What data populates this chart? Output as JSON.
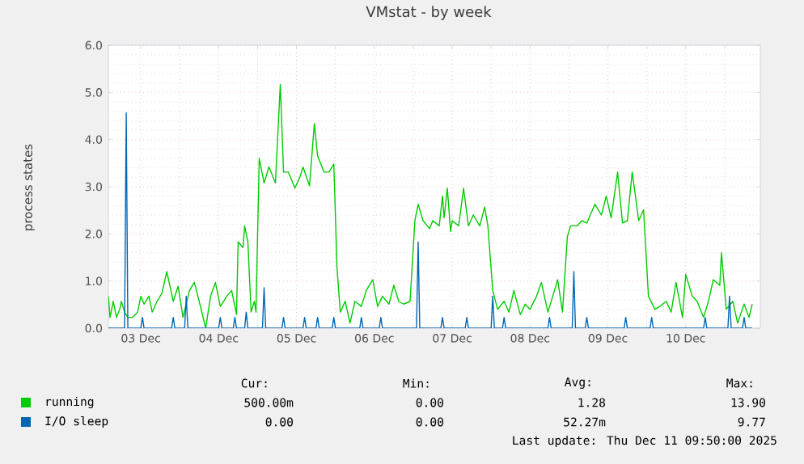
{
  "chart_data": {
    "type": "line",
    "title": "VMstat - by week",
    "ylabel": "process states",
    "xlim": [
      "2025-12-03T02:00",
      "2025-12-11T11:00"
    ],
    "ylim": [
      0,
      6
    ],
    "xticks": [
      {
        "value": "2025-12-03T12:00",
        "label": "03 Dec"
      },
      {
        "value": "2025-12-04",
        "label": null
      },
      {
        "value": "2025-12-04T12:00",
        "label": "04 Dec"
      },
      {
        "value": "2025-12-05",
        "label": null
      },
      {
        "value": "2025-12-05T12:00",
        "label": "05 Dec"
      },
      {
        "value": "2025-12-06",
        "label": null
      },
      {
        "value": "2025-12-06T12:00",
        "label": "06 Dec"
      },
      {
        "value": "2025-12-07",
        "label": null
      },
      {
        "value": "2025-12-07T12:00",
        "label": "07 Dec"
      },
      {
        "value": "2025-12-08",
        "label": null
      },
      {
        "value": "2025-12-08T12:00",
        "label": "08 Dec"
      },
      {
        "value": "2025-12-09",
        "label": null
      },
      {
        "value": "2025-12-09T12:00",
        "label": "09 Dec"
      },
      {
        "value": "2025-12-10",
        "label": null
      },
      {
        "value": "2025-12-10T12:00",
        "label": "10 Dec"
      },
      {
        "value": "2025-12-11",
        "label": null
      }
    ],
    "yticks": [
      {
        "value": 0,
        "label": "0.0"
      },
      {
        "value": 1,
        "label": "1.0"
      },
      {
        "value": 2,
        "label": "2.0"
      },
      {
        "value": 3,
        "label": "3.0"
      },
      {
        "value": 4,
        "label": "4.0"
      },
      {
        "value": 5,
        "label": "5.0"
      },
      {
        "value": 6,
        "label": "6.0"
      }
    ],
    "grid": true,
    "legend": "bottom",
    "series": [
      {
        "name": "running",
        "color": "#00cc00",
        "x": [
          "2025-12-03T02:00",
          "2025-12-03T02:30",
          "2025-12-03T03:30",
          "2025-12-03T04:30",
          "2025-12-03T05:30",
          "2025-12-03T06:00",
          "2025-12-03T07:00",
          "2025-12-03T08:00",
          "2025-12-03T09:30",
          "2025-12-03T11:00",
          "2025-12-03T12:00",
          "2025-12-03T13:00",
          "2025-12-03T14:30",
          "2025-12-03T15:30",
          "2025-12-03T17:00",
          "2025-12-03T18:30",
          "2025-12-03T20:00",
          "2025-12-03T22:00",
          "2025-12-03T23:30",
          "2025-12-04T01:00",
          "2025-12-04T03:00",
          "2025-12-04T04:30",
          "2025-12-04T06:00",
          "2025-12-04T08:00",
          "2025-12-04T09:30",
          "2025-12-04T11:00",
          "2025-12-04T12:30",
          "2025-12-04T14:30",
          "2025-12-04T16:00",
          "2025-12-04T17:30",
          "2025-12-04T18:00",
          "2025-12-04T19:30",
          "2025-12-04T20:00",
          "2025-12-04T21:00",
          "2025-12-04T22:00",
          "2025-12-04T23:00",
          "2025-12-04T23:30",
          "2025-12-05T00:30",
          "2025-12-05T02:00",
          "2025-12-05T03:30",
          "2025-12-05T05:30",
          "2025-12-05T07:00",
          "2025-12-05T08:00",
          "2025-12-05T09:30",
          "2025-12-05T11:30",
          "2025-12-05T13:00",
          "2025-12-05T14:00",
          "2025-12-05T16:00",
          "2025-12-05T17:30",
          "2025-12-05T18:30",
          "2025-12-05T20:30",
          "2025-12-05T22:00",
          "2025-12-05T23:30",
          "2025-12-06T00:30",
          "2025-12-06T01:30",
          "2025-12-06T03:00",
          "2025-12-06T04:30",
          "2025-12-06T06:00",
          "2025-12-06T08:00",
          "2025-12-06T09:30",
          "2025-12-06T11:30",
          "2025-12-06T13:00",
          "2025-12-06T14:30",
          "2025-12-06T16:30",
          "2025-12-06T18:00",
          "2025-12-06T19:30",
          "2025-12-06T21:00",
          "2025-12-06T23:00",
          "2025-12-07T00:30",
          "2025-12-07T01:30",
          "2025-12-07T03:00",
          "2025-12-07T05:00",
          "2025-12-07T06:00",
          "2025-12-07T08:00",
          "2025-12-07T09:00",
          "2025-12-07T09:30",
          "2025-12-07T10:30",
          "2025-12-07T11:30",
          "2025-12-07T12:00",
          "2025-12-07T14:00",
          "2025-12-07T15:30",
          "2025-12-07T17:00",
          "2025-12-07T18:30",
          "2025-12-07T20:30",
          "2025-12-07T22:00",
          "2025-12-07T23:00",
          "2025-12-08T00:30",
          "2025-12-08T02:00",
          "2025-12-08T04:00",
          "2025-12-08T05:30",
          "2025-12-08T07:00",
          "2025-12-08T09:00",
          "2025-12-08T10:30",
          "2025-12-08T12:00",
          "2025-12-08T14:00",
          "2025-12-08T15:30",
          "2025-12-08T17:30",
          "2025-12-08T19:00",
          "2025-12-08T20:30",
          "2025-12-08T22:00",
          "2025-12-08T23:30",
          "2025-12-09T00:30",
          "2025-12-09T02:30",
          "2025-12-09T04:00",
          "2025-12-09T05:30",
          "2025-12-09T08:00",
          "2025-12-09T10:00",
          "2025-12-09T11:30",
          "2025-12-09T13:00",
          "2025-12-09T15:00",
          "2025-12-09T16:30",
          "2025-12-09T18:00",
          "2025-12-09T19:30",
          "2025-12-09T21:30",
          "2025-12-09T23:00",
          "2025-12-10T00:30",
          "2025-12-10T02:30",
          "2025-12-10T04:00",
          "2025-12-10T06:00",
          "2025-12-10T07:30",
          "2025-12-10T09:00",
          "2025-12-10T11:00",
          "2025-12-10T12:00",
          "2025-12-10T14:00",
          "2025-12-10T15:30",
          "2025-12-10T17:30",
          "2025-12-10T19:00",
          "2025-12-10T20:30",
          "2025-12-10T22:30",
          "2025-12-10T23:00",
          "2025-12-11T00:30",
          "2025-12-11T02:30",
          "2025-12-11T04:00",
          "2025-12-11T06:00",
          "2025-12-11T07:30",
          "2025-12-11T08:30"
        ],
        "values": [
          0.68,
          0.23,
          0.57,
          0.23,
          0.4,
          0.57,
          0.34,
          0.23,
          0.23,
          0.34,
          0.68,
          0.51,
          0.68,
          0.34,
          0.57,
          0.74,
          1.2,
          0.57,
          0.89,
          0.23,
          0.8,
          0.97,
          0.57,
          0.0,
          0.68,
          0.97,
          0.46,
          0.68,
          0.8,
          0.29,
          1.83,
          1.71,
          2.17,
          1.83,
          0.34,
          0.57,
          0.34,
          3.6,
          3.08,
          3.42,
          3.08,
          5.17,
          3.31,
          3.31,
          2.97,
          3.2,
          3.42,
          3.02,
          4.34,
          3.65,
          3.31,
          3.31,
          3.48,
          1.26,
          0.34,
          0.57,
          0.11,
          0.57,
          0.46,
          0.8,
          1.03,
          0.46,
          0.68,
          0.51,
          0.91,
          0.57,
          0.51,
          0.57,
          2.28,
          2.63,
          2.28,
          2.11,
          2.28,
          2.17,
          2.8,
          2.34,
          2.97,
          2.05,
          2.28,
          2.17,
          2.97,
          2.17,
          2.4,
          2.17,
          2.57,
          2.17,
          0.8,
          0.4,
          0.57,
          0.34,
          0.8,
          0.29,
          0.51,
          0.4,
          0.68,
          0.97,
          0.34,
          0.68,
          1.03,
          0.34,
          1.94,
          2.17,
          2.17,
          2.28,
          2.23,
          2.63,
          2.4,
          2.8,
          2.34,
          3.31,
          2.23,
          2.28,
          3.31,
          2.28,
          2.51,
          0.68,
          0.4,
          0.46,
          0.57,
          0.34,
          0.97,
          0.23,
          1.14,
          0.68,
          0.57,
          0.23,
          0.57,
          1.03,
          0.91,
          1.6,
          0.4,
          0.57,
          0.11,
          0.51,
          0.23,
          0.51
        ]
      },
      {
        "name": "I/O sleep",
        "color": "#0066b3",
        "x": [
          "2025-12-03T02:00",
          "2025-12-03T07:00",
          "2025-12-03T07:30",
          "2025-12-03T08:00",
          "2025-12-03T12:00",
          "2025-12-03T12:30",
          "2025-12-03T13:00",
          "2025-12-03T21:30",
          "2025-12-03T22:00",
          "2025-12-03T22:30",
          "2025-12-04T01:30",
          "2025-12-04T02:00",
          "2025-12-04T02:30",
          "2025-12-04T12:00",
          "2025-12-04T12:30",
          "2025-12-04T13:00",
          "2025-12-04T16:30",
          "2025-12-04T17:00",
          "2025-12-04T17:30",
          "2025-12-04T20:00",
          "2025-12-04T20:30",
          "2025-12-04T21:00",
          "2025-12-05T01:30",
          "2025-12-05T02:00",
          "2025-12-05T02:30",
          "2025-12-05T07:30",
          "2025-12-05T08:00",
          "2025-12-05T08:30",
          "2025-12-05T14:00",
          "2025-12-05T14:30",
          "2025-12-05T15:00",
          "2025-12-05T18:00",
          "2025-12-05T18:30",
          "2025-12-05T19:00",
          "2025-12-05T23:00",
          "2025-12-05T23:30",
          "2025-12-06T00:00",
          "2025-12-06T07:30",
          "2025-12-06T08:00",
          "2025-12-06T08:30",
          "2025-12-06T13:30",
          "2025-12-06T14:00",
          "2025-12-06T14:30",
          "2025-12-07T01:00",
          "2025-12-07T01:30",
          "2025-12-07T02:00",
          "2025-12-07T08:30",
          "2025-12-07T09:00",
          "2025-12-07T09:30",
          "2025-12-07T16:00",
          "2025-12-07T16:30",
          "2025-12-07T17:00",
          "2025-12-08T00:00",
          "2025-12-08T00:30",
          "2025-12-08T01:00",
          "2025-12-08T03:30",
          "2025-12-08T04:00",
          "2025-12-08T04:30",
          "2025-12-08T17:30",
          "2025-12-08T18:00",
          "2025-12-08T18:30",
          "2025-12-09T01:00",
          "2025-12-09T01:30",
          "2025-12-09T02:00",
          "2025-12-09T05:00",
          "2025-12-09T05:30",
          "2025-12-09T06:00",
          "2025-12-09T17:00",
          "2025-12-09T17:30",
          "2025-12-09T18:00",
          "2025-12-10T01:00",
          "2025-12-10T01:30",
          "2025-12-10T02:00",
          "2025-12-10T17:30",
          "2025-12-10T18:00",
          "2025-12-10T18:30",
          "2025-12-11T01:00",
          "2025-12-11T01:30",
          "2025-12-11T02:00",
          "2025-12-11T05:30",
          "2025-12-11T06:00",
          "2025-12-11T06:30",
          "2025-12-11T08:30"
        ],
        "values": [
          0,
          0,
          4.57,
          0,
          0,
          0.23,
          0,
          0,
          0.23,
          0,
          0,
          0.68,
          0,
          0,
          0.23,
          0,
          0,
          0.23,
          0,
          0,
          0.34,
          0,
          0,
          0.86,
          0,
          0,
          0.23,
          0,
          0,
          0.23,
          0,
          0,
          0.23,
          0,
          0,
          0.23,
          0,
          0,
          0.23,
          0,
          0,
          0.23,
          0,
          0,
          1.83,
          0,
          0,
          0.23,
          0,
          0,
          0.23,
          0,
          0,
          0.68,
          0,
          0,
          0.23,
          0,
          0,
          0.23,
          0,
          0,
          1.2,
          0,
          0,
          0.23,
          0,
          0,
          0.23,
          0,
          0,
          0.23,
          0,
          0,
          0.23,
          0,
          0,
          0.68,
          0,
          0,
          0.23,
          0,
          0
        ]
      }
    ],
    "annotations": [
      "Cur:",
      "Min:",
      "Avg:",
      "Max:",
      "500.00m",
      "0.00",
      "1.28",
      "13.90",
      "0.00",
      "0.00",
      "52.27m",
      "9.77",
      "Last update: Thu Dec 11 09:50:00 2025"
    ]
  }
}
